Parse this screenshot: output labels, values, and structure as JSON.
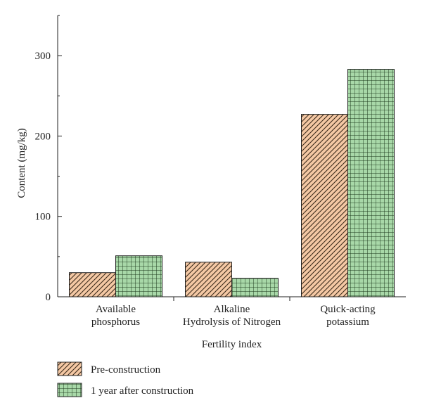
{
  "chart_data": {
    "type": "bar",
    "title": "",
    "xlabel": "Fertility index",
    "ylabel": "Content (mg/kg)",
    "ylim": [
      0,
      350
    ],
    "yticks": [
      0,
      100,
      200,
      300
    ],
    "grid": false,
    "legend_position": "bottom-left",
    "categories": [
      [
        "Available",
        "phosphorus"
      ],
      [
        "Alkaline",
        "Hydrolysis of Nitrogen"
      ],
      [
        "Quick-acting",
        "potassium"
      ]
    ],
    "series": [
      {
        "name": "Pre-construction",
        "values": [
          30,
          43,
          227
        ],
        "color": "#f4c8a4",
        "pattern": "diagonal-hatch"
      },
      {
        "name": "1 year after construction",
        "values": [
          51,
          23,
          283
        ],
        "color": "#a8d8a8",
        "pattern": "grid-hatch"
      }
    ]
  }
}
